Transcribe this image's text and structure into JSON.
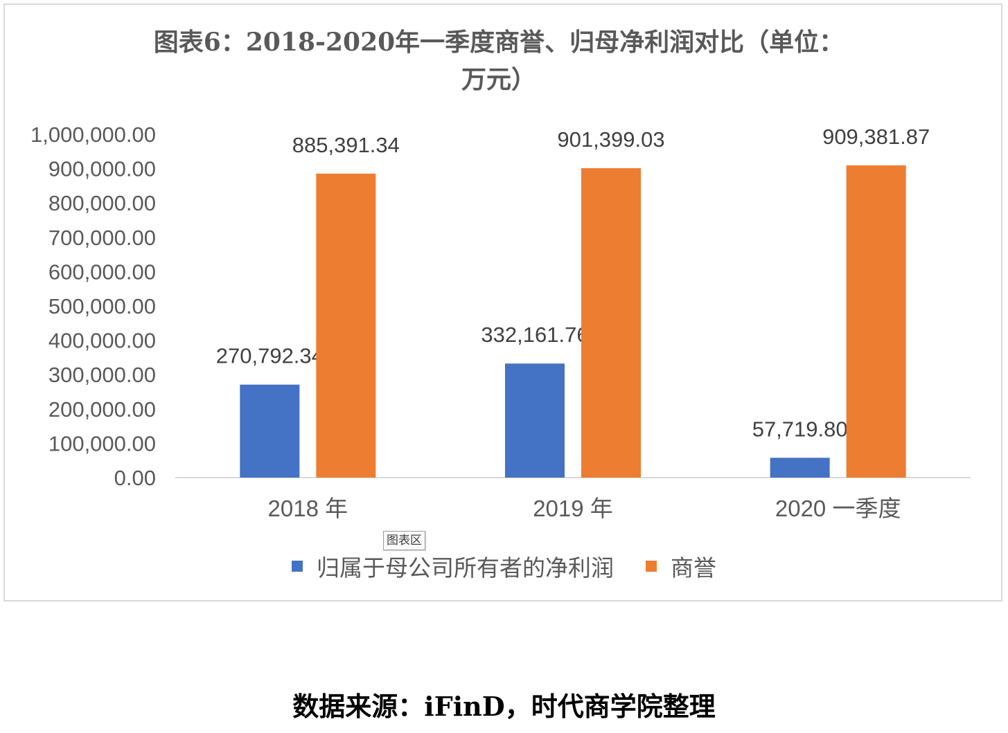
{
  "chart_data": {
    "type": "bar",
    "title_lines": [
      "图表6：2018-2020年一季度商誉、归母净利润对比（单位：",
      "万元）"
    ],
    "categories": [
      "2018 年",
      "2019 年",
      "2020 一季度"
    ],
    "series": [
      {
        "name": "归属于母公司所有者的净利润",
        "color": "#4472C4",
        "values": [
          270792.34,
          332161.76,
          57719.8
        ],
        "labels": [
          "270,792.34",
          "332,161.76",
          "57,719.80"
        ]
      },
      {
        "name": "商誉",
        "color": "#ED7D31",
        "values": [
          885391.34,
          901399.03,
          909381.87
        ],
        "labels": [
          "885,391.34",
          "901,399.03",
          "909,381.87"
        ]
      }
    ],
    "ylim": [
      0,
      1000000
    ],
    "yticks": [
      "0.00",
      "100,000.00",
      "200,000.00",
      "300,000.00",
      "400,000.00",
      "500,000.00",
      "600,000.00",
      "700,000.00",
      "800,000.00",
      "900,000.00",
      "1,000,000.00"
    ],
    "grid": false,
    "legend_position": "bottom"
  },
  "plot_area_tag": "图表区",
  "source_note": "数据来源：iFinD，时代商学院整理"
}
